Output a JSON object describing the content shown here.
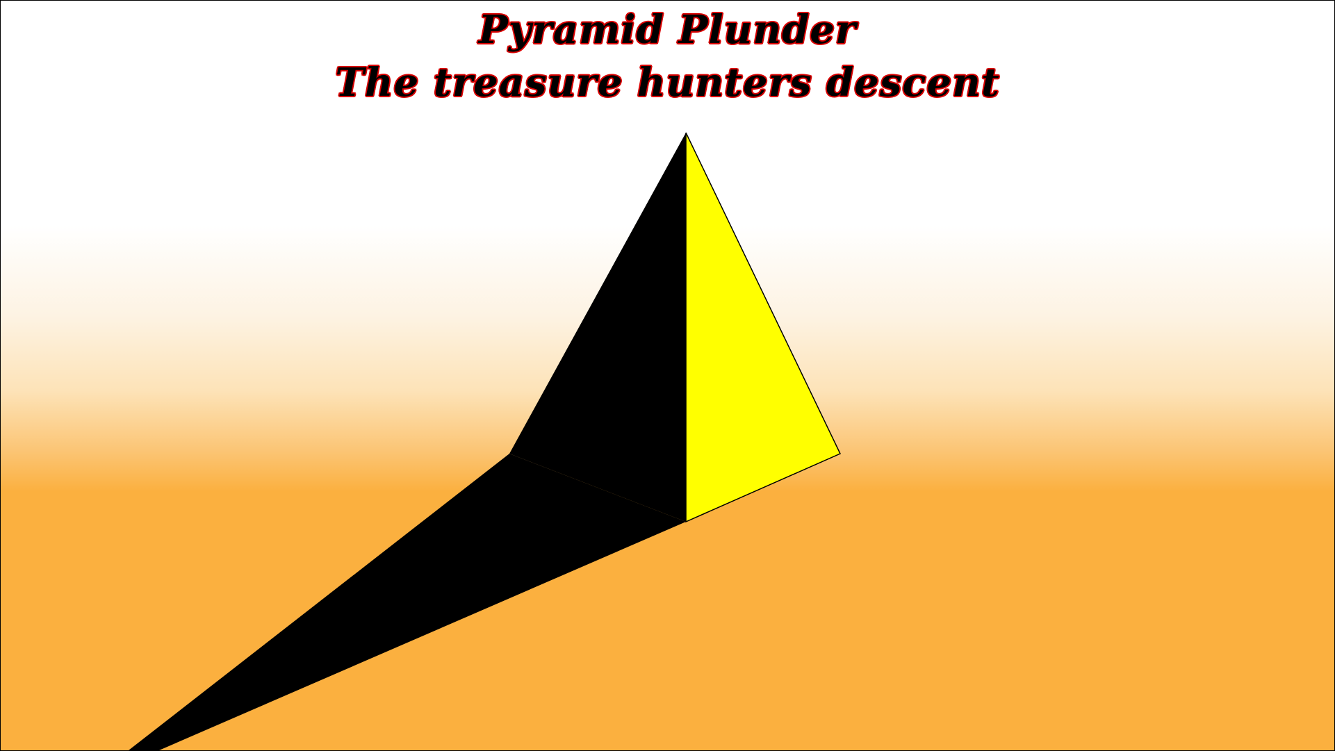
{
  "title": {
    "line1": "Pyramid Plunder",
    "line2": "The treasure hunters descent"
  },
  "colors": {
    "sky": "#ffffff",
    "sand": "#fbb03f",
    "pyramid_lit_face": "#ffff00",
    "pyramid_shadow": "#000000",
    "title_fill": "#000000",
    "title_outline": "#d90000"
  },
  "scene": {
    "background": "desert-horizon-gradient",
    "objects": [
      "pyramid-lit-face",
      "pyramid-shadow-face",
      "pyramid-cast-shadow"
    ]
  }
}
